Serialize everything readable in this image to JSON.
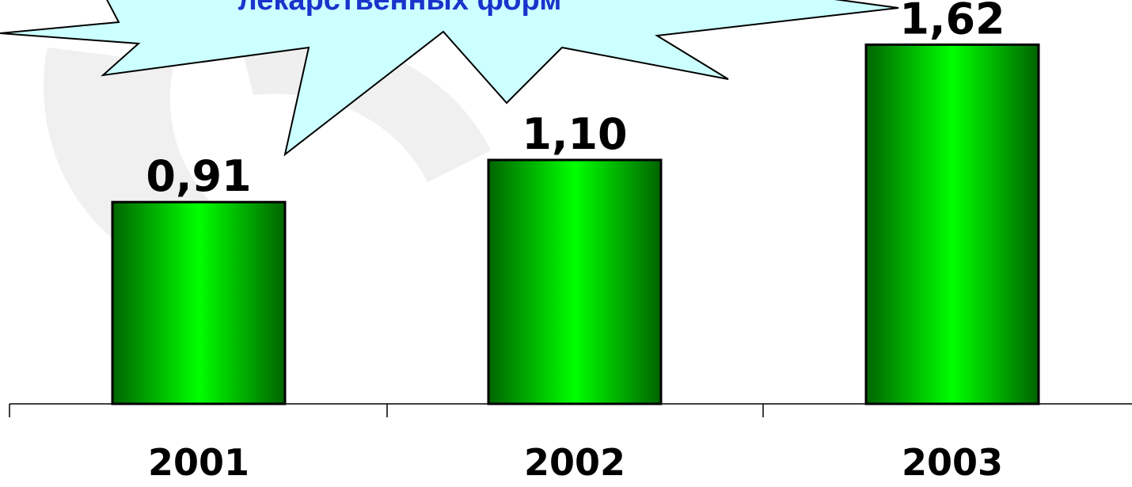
{
  "colors": {
    "bar_dark": "#006400",
    "bar_light": "#00ff00",
    "bar_outline": "#000000",
    "callout_fill": "#ccffff",
    "callout_text": "#1a33cc",
    "watermark": "#eeeeee"
  },
  "callout": {
    "text": "лекарственных форм"
  },
  "chart_data": {
    "type": "bar",
    "categories": [
      "2001",
      "2002",
      "2003"
    ],
    "values": [
      0.91,
      1.1,
      1.62
    ],
    "value_labels": [
      "0,91",
      "1,10",
      "1,62"
    ],
    "title": "",
    "xlabel": "",
    "ylabel": "",
    "ylim": [
      0,
      1.75
    ],
    "grid": false,
    "legend": "none"
  }
}
